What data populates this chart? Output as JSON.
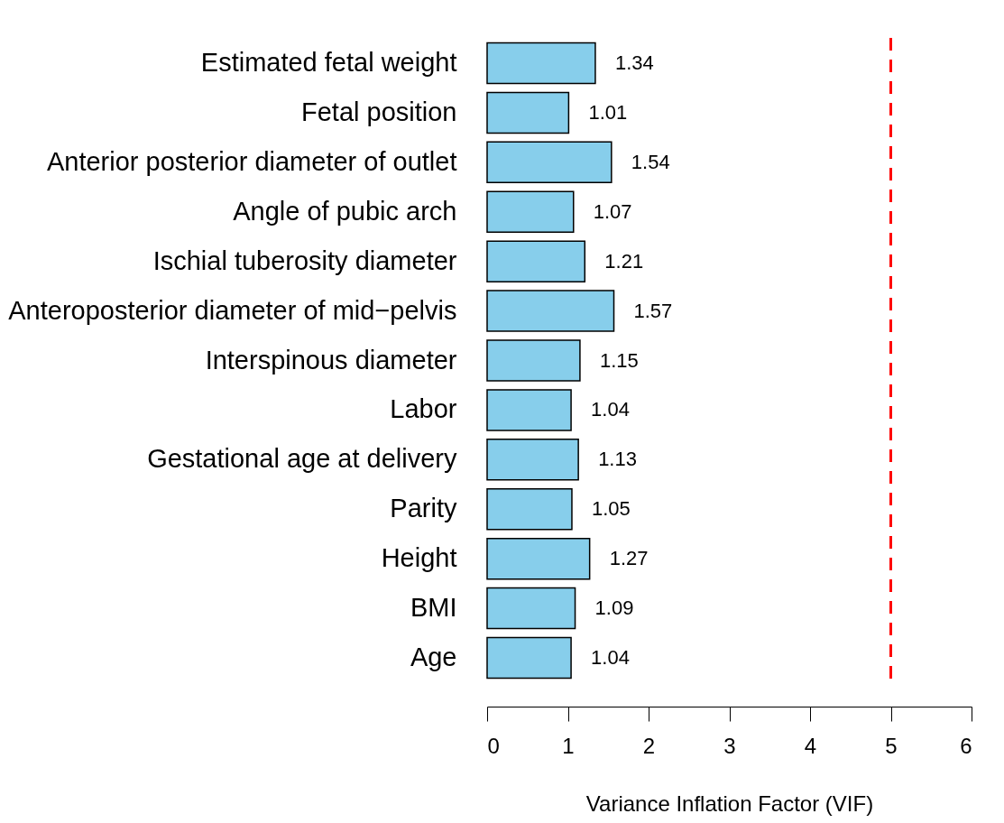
{
  "chart_data": {
    "type": "bar",
    "orientation": "horizontal",
    "xlabel": "Variance Inflation Factor (VIF)",
    "categories": [
      "Estimated fetal weight",
      "Fetal position",
      "Anterior posterior diameter of outlet",
      "Angle of pubic arch",
      "Ischial tuberosity diameter",
      "Anteroposterior diameter of mid−pelvis",
      "Interspinous diameter",
      "Labor",
      "Gestational age at delivery",
      "Parity",
      "Height",
      "BMI",
      "Age"
    ],
    "values": [
      1.34,
      1.01,
      1.54,
      1.07,
      1.21,
      1.57,
      1.15,
      1.04,
      1.13,
      1.05,
      1.27,
      1.09,
      1.04
    ],
    "color": "#87ceeb",
    "data_labels": true,
    "xlim": [
      0,
      6
    ],
    "xticks": [
      0,
      1,
      2,
      3,
      4,
      5,
      6
    ],
    "grid": false,
    "legend": false,
    "ref_lines": [
      {
        "axis": "x",
        "value": 5,
        "color": "#ff0000",
        "line_style": "dashed"
      }
    ]
  }
}
